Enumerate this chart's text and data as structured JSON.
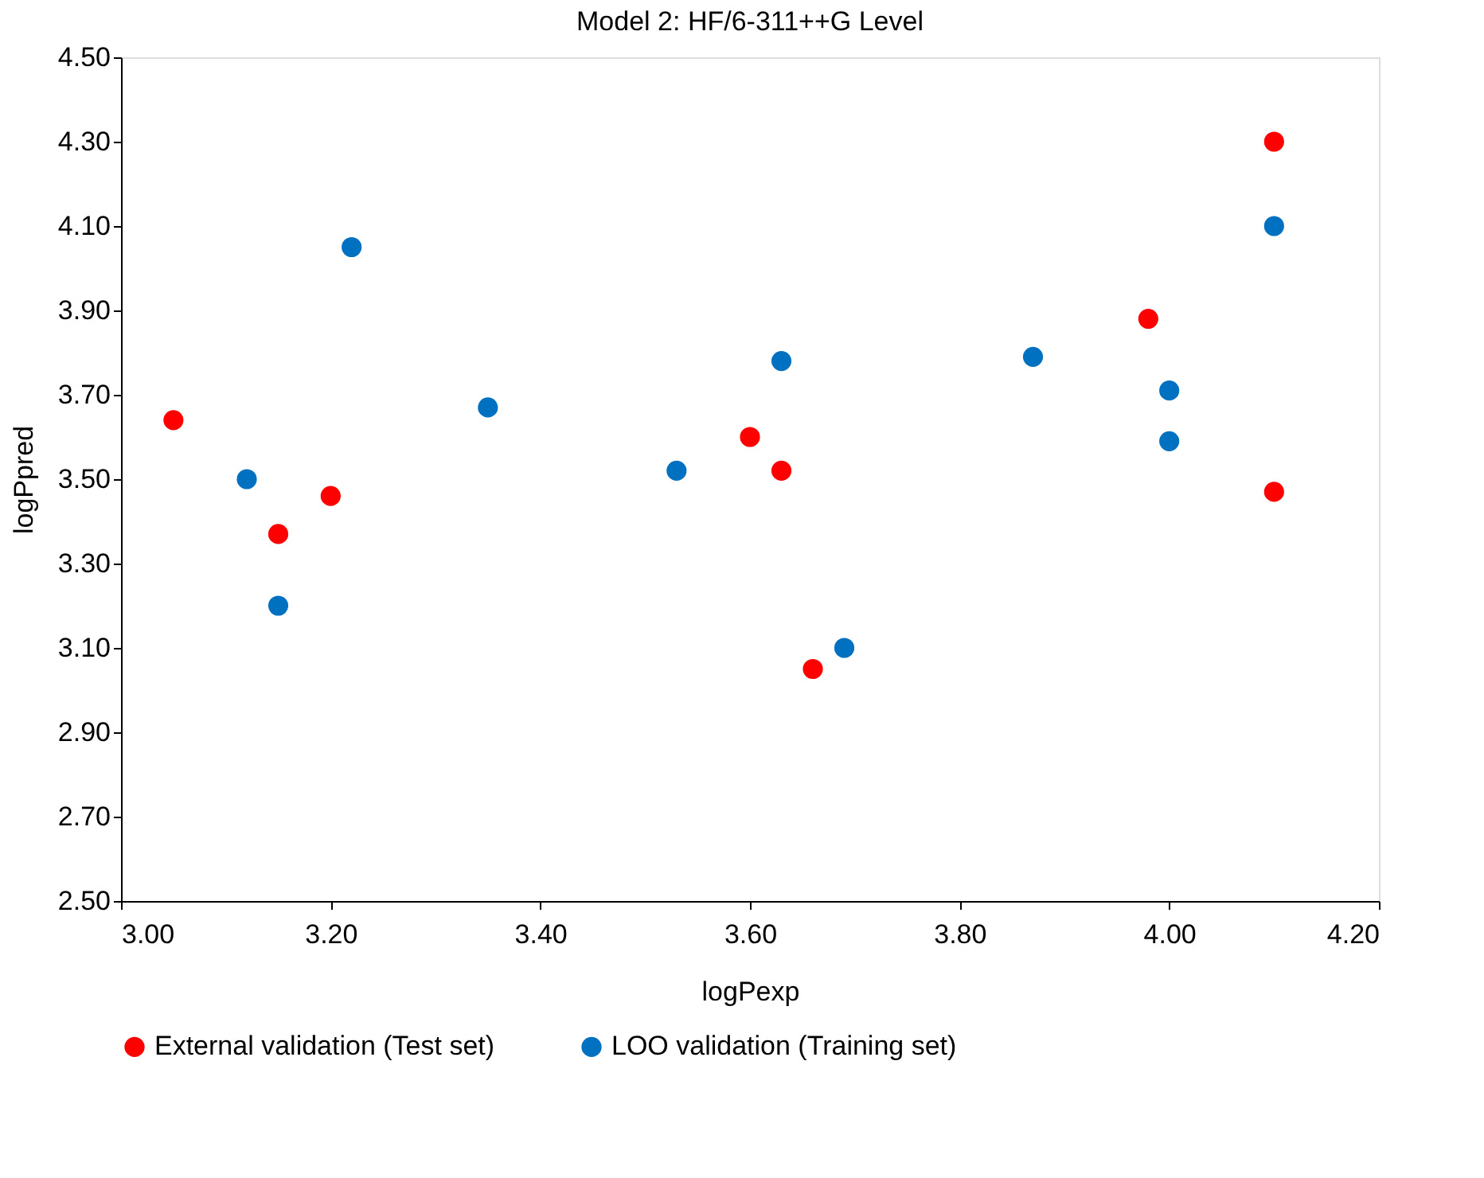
{
  "chart_data": {
    "type": "scatter",
    "title": "Model 2: HF/6-311++G Level",
    "xlabel": "logPexp",
    "ylabel": "logPpred",
    "series": [
      {
        "name": "External validation (Test set)",
        "color": "#ff0000",
        "x": [
          3.05,
          3.15,
          3.2,
          3.6,
          3.63,
          3.66,
          3.98,
          4.1,
          4.1
        ],
        "values": [
          3.64,
          3.37,
          3.46,
          3.6,
          3.52,
          3.05,
          3.88,
          4.3,
          3.47
        ]
      },
      {
        "name": "LOO validation (Training set)",
        "color": "#0070c0",
        "x": [
          3.12,
          3.15,
          3.22,
          3.35,
          3.53,
          3.63,
          3.69,
          3.87,
          4.0,
          4.0,
          4.1
        ],
        "values": [
          3.5,
          3.2,
          4.05,
          3.67,
          3.52,
          3.78,
          3.1,
          3.79,
          3.71,
          3.59,
          4.1
        ]
      }
    ],
    "xlim": [
      3.0,
      4.2
    ],
    "xticks": [
      {
        "value": 3.0,
        "label": "3.00"
      },
      {
        "value": 3.2,
        "label": "3.20"
      },
      {
        "value": 3.4,
        "label": "3.40"
      },
      {
        "value": 3.6,
        "label": "3.60"
      },
      {
        "value": 3.8,
        "label": "3.80"
      },
      {
        "value": 4.0,
        "label": "4.00"
      },
      {
        "value": 4.2,
        "label": "4.20"
      }
    ],
    "ylim": [
      2.5,
      4.5
    ],
    "yticks": [
      {
        "value": 2.5,
        "label": "2.50"
      },
      {
        "value": 2.7,
        "label": "2.70"
      },
      {
        "value": 2.9,
        "label": "2.90"
      },
      {
        "value": 3.1,
        "label": "3.10"
      },
      {
        "value": 3.3,
        "label": "3.30"
      },
      {
        "value": 3.5,
        "label": "3.50"
      },
      {
        "value": 3.7,
        "label": "3.70"
      },
      {
        "value": 3.9,
        "label": "3.90"
      },
      {
        "value": 4.1,
        "label": "4.10"
      },
      {
        "value": 4.3,
        "label": "4.30"
      },
      {
        "value": 4.5,
        "label": "4.50"
      }
    ],
    "grid": false,
    "legend": "bottom",
    "marker": "circle"
  }
}
